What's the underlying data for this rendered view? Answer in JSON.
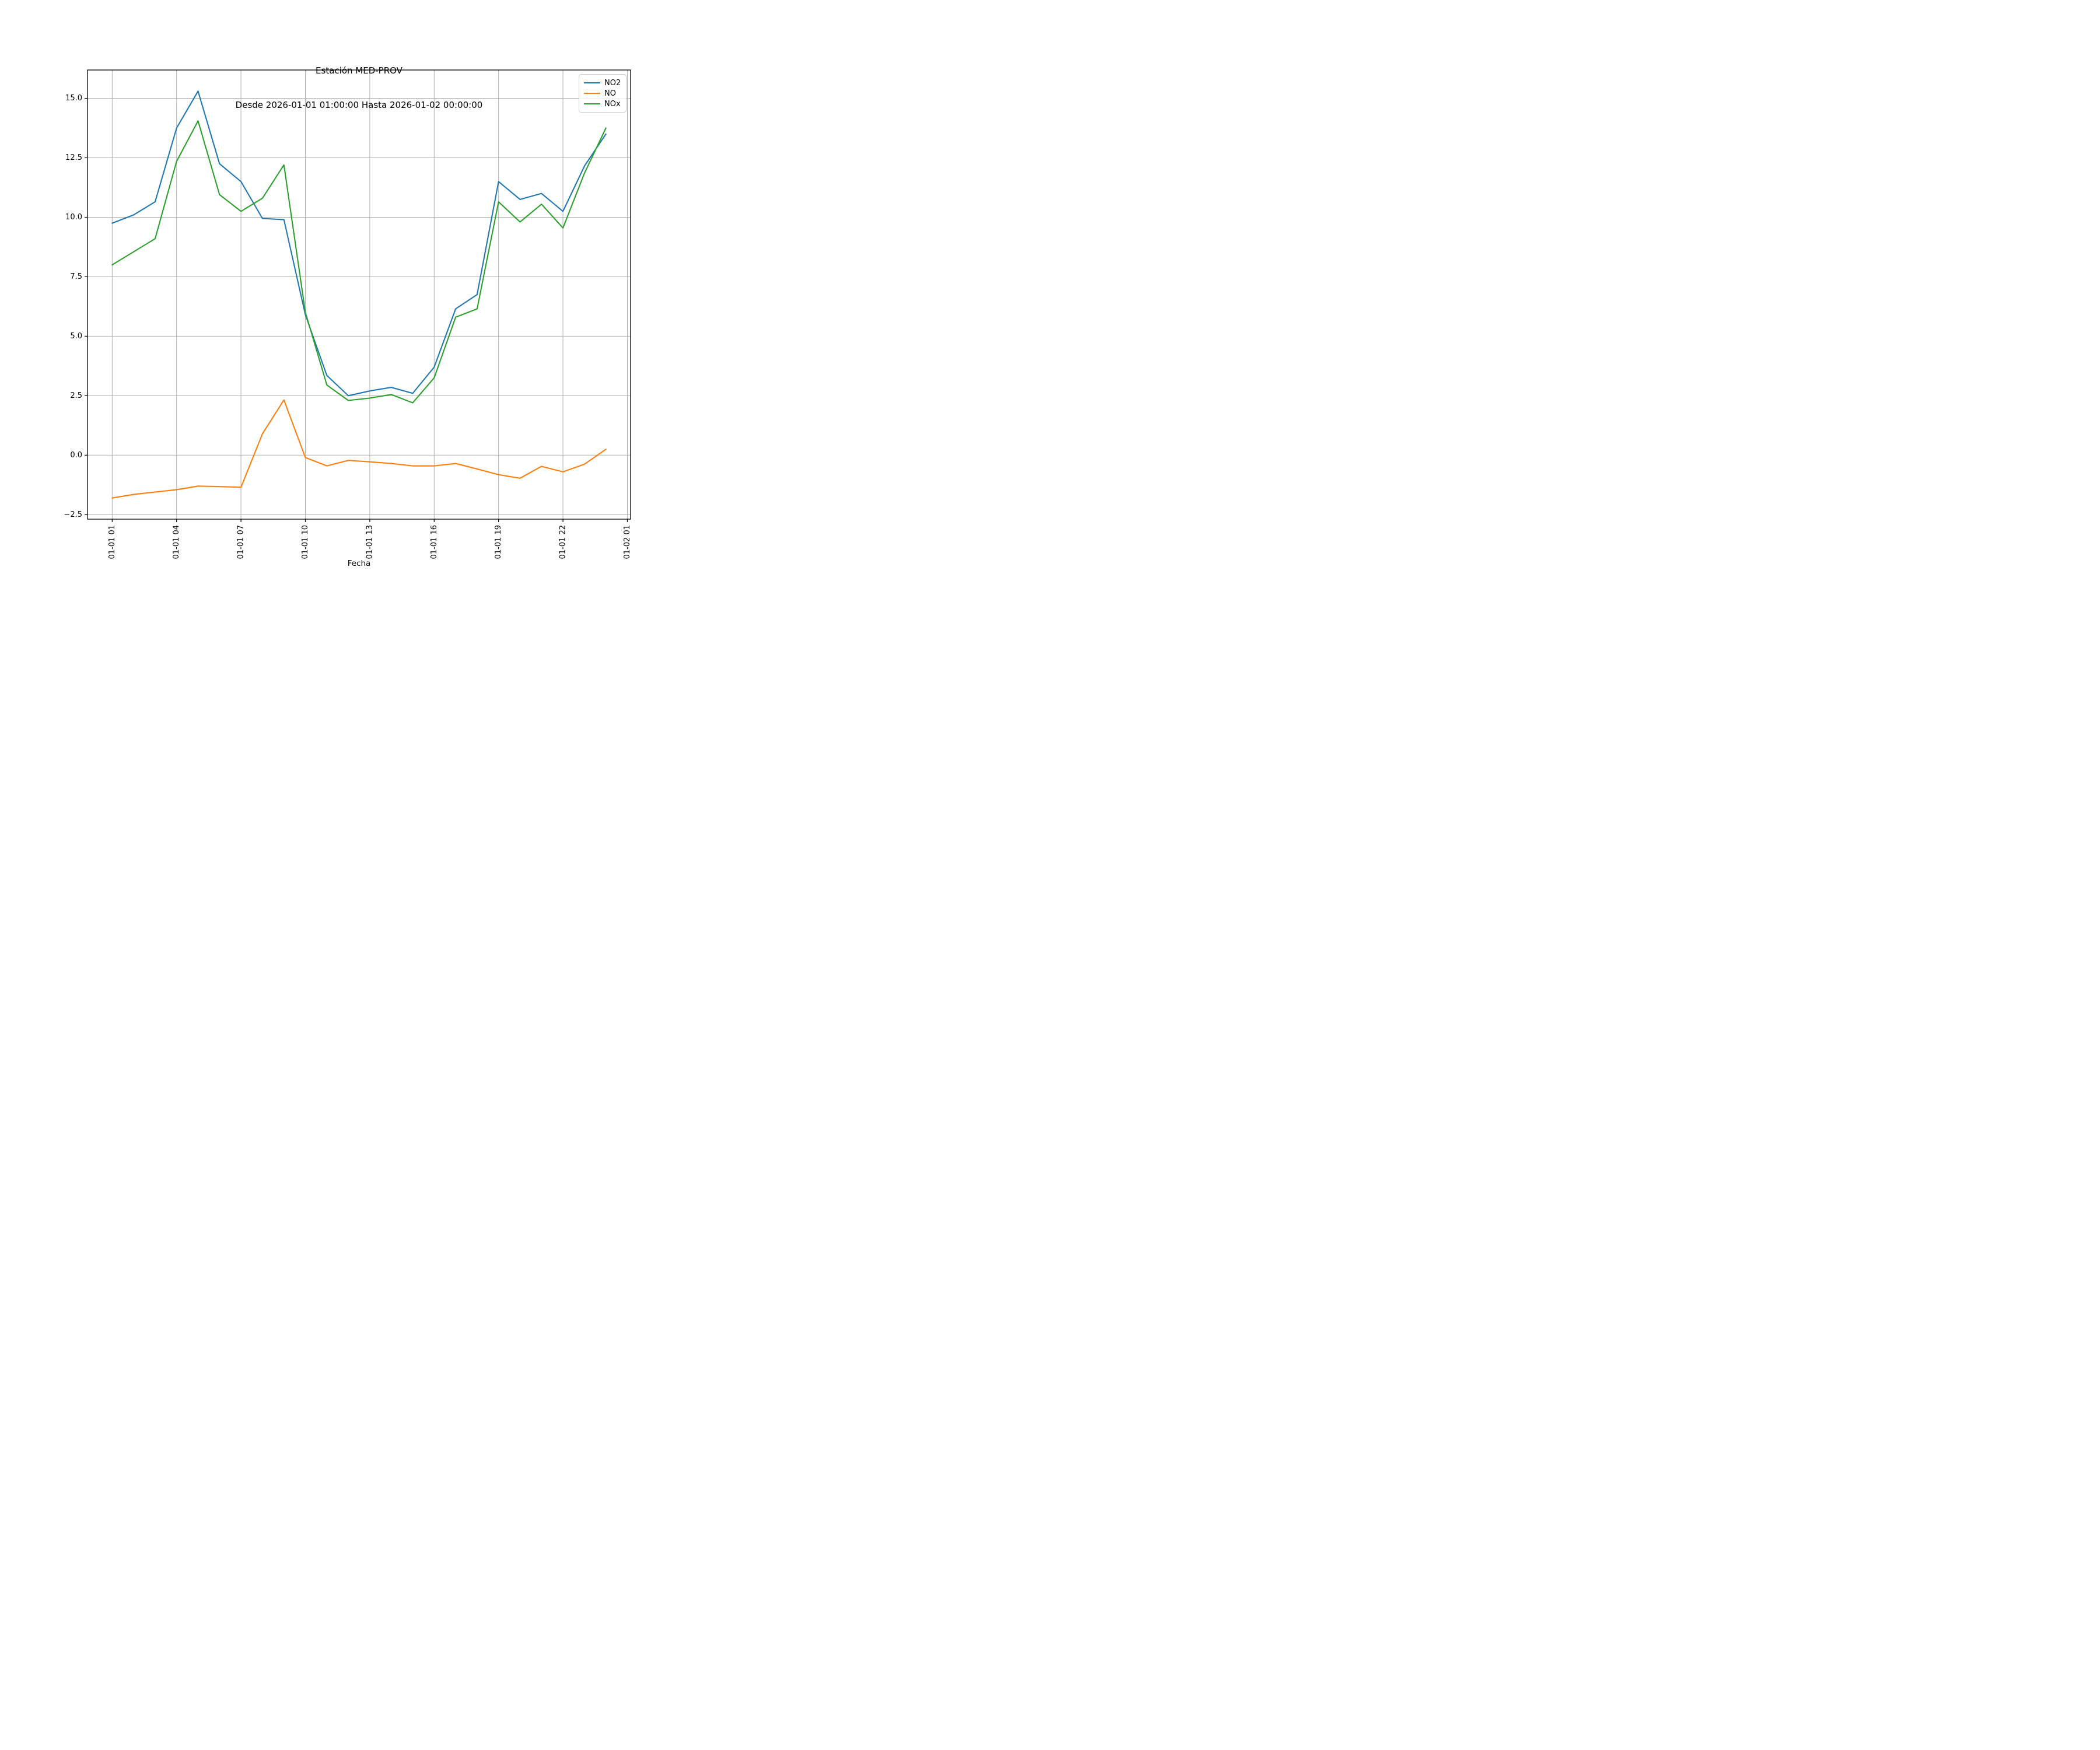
{
  "figure": {
    "title": "Estación MED-PROV",
    "subtitle": "Desde 2026-01-01 01:00:00 Hasta 2026-01-02 00:00:00",
    "xlabel": "Fecha",
    "background_color": "#ffffff"
  },
  "legend": {
    "position": "upper right",
    "items": [
      {
        "label": "NO2",
        "color": "#1f77b4"
      },
      {
        "label": "NO",
        "color": "#ff7f0e"
      },
      {
        "label": "NOx",
        "color": "#2ca02c"
      }
    ]
  },
  "chart_data": {
    "type": "line",
    "title": "Estación MED-PROV",
    "subtitle": "Desde 2026-01-01 01:00:00 Hasta 2026-01-02 00:00:00",
    "xlabel": "Fecha",
    "ylabel": "",
    "x_unit": "hours since 2026-01-01 00:00",
    "x": [
      1,
      2,
      3,
      4,
      5,
      6,
      7,
      8,
      9,
      10,
      11,
      12,
      13,
      14,
      15,
      16,
      17,
      18,
      19,
      20,
      21,
      22,
      23,
      24
    ],
    "series": [
      {
        "name": "NO2",
        "color": "#1f77b4",
        "values": [
          9.75,
          10.1,
          10.65,
          13.75,
          15.3,
          12.25,
          11.5,
          9.95,
          9.9,
          5.9,
          3.35,
          2.5,
          2.7,
          2.85,
          2.6,
          3.7,
          6.15,
          6.75,
          11.5,
          10.75,
          11.0,
          10.25,
          12.15,
          13.5
        ]
      },
      {
        "name": "NO",
        "color": "#ff7f0e",
        "values": [
          -1.8,
          -1.65,
          -1.55,
          -1.45,
          -1.3,
          -1.32,
          -1.35,
          0.9,
          2.32,
          -0.1,
          -0.45,
          -0.22,
          -0.28,
          -0.35,
          -0.45,
          -0.45,
          -0.35,
          -0.58,
          -0.82,
          -0.97,
          -0.47,
          -0.7,
          -0.38,
          0.25
        ]
      },
      {
        "name": "NOx",
        "color": "#2ca02c",
        "values": [
          8.0,
          8.55,
          9.1,
          12.35,
          14.05,
          10.95,
          10.25,
          10.8,
          12.2,
          6.0,
          2.95,
          2.3,
          2.4,
          2.55,
          2.2,
          3.25,
          5.8,
          6.15,
          10.65,
          9.8,
          10.55,
          9.55,
          11.85,
          13.75
        ]
      }
    ],
    "x_ticks": {
      "hours": [
        1,
        4,
        7,
        10,
        13,
        16,
        19,
        22,
        25
      ],
      "labels": [
        "01-01 01",
        "01-01 04",
        "01-01 07",
        "01-01 10",
        "01-01 13",
        "01-01 16",
        "01-01 19",
        "01-01 22",
        "01-02 01"
      ],
      "rotation_deg": 90
    },
    "y_ticks": [
      -2.5,
      0.0,
      2.5,
      5.0,
      7.5,
      10.0,
      12.5,
      15.0
    ],
    "xlim": [
      -0.15,
      25.15
    ],
    "ylim": [
      -2.69,
      16.19
    ],
    "grid": true,
    "grid_color": "#b0b0b0",
    "spine_color": "#000000",
    "legend_position": "upper right"
  }
}
